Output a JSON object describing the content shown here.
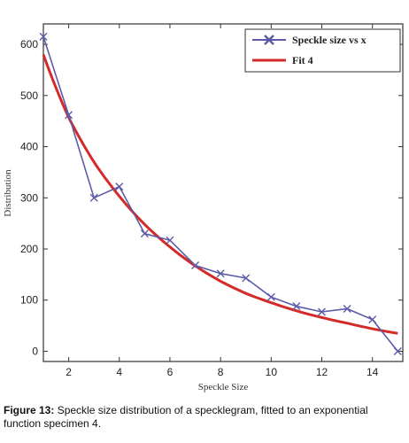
{
  "chart_data": {
    "type": "line",
    "xlabel": "Speckle Size",
    "ylabel": "Distribution",
    "xlim": [
      1,
      15.2
    ],
    "ylim": [
      -20,
      640
    ],
    "xticks": [
      2,
      4,
      6,
      8,
      10,
      12,
      14
    ],
    "yticks": [
      0,
      100,
      200,
      300,
      400,
      500,
      600
    ],
    "grid": false,
    "legend_position": "top-right",
    "series": [
      {
        "name": "Speckle size vs x",
        "style": "line-with-x-markers",
        "color": "#5b5ba8",
        "x": [
          1,
          2,
          3,
          4,
          5,
          6,
          7,
          8,
          9,
          10,
          11,
          12,
          13,
          14,
          15
        ],
        "y": [
          615,
          462,
          300,
          322,
          230,
          217,
          168,
          152,
          143,
          106,
          88,
          77,
          83,
          62,
          0
        ]
      },
      {
        "name": "Fit 4",
        "style": "line",
        "color": "#d42a2a",
        "x": [
          1,
          2,
          3,
          4,
          5,
          6,
          7,
          8,
          9,
          10,
          11,
          12,
          13,
          14,
          15
        ],
        "y": [
          580,
          457,
          370,
          303,
          248,
          204,
          167,
          137,
          113,
          95,
          79,
          66,
          55,
          44,
          35
        ]
      }
    ]
  },
  "caption": {
    "label": "Figure 13:",
    "text": " Speckle size distribution of a specklegram, fitted to an exponential function specimen 4."
  }
}
